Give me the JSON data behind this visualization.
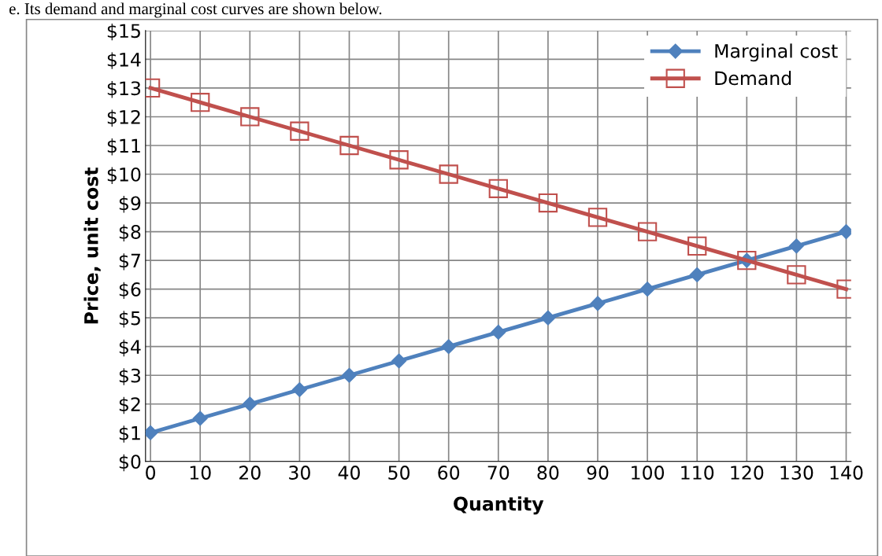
{
  "chart_data": {
    "type": "line",
    "annotations": [
      "e. Its demand and marginal cost curves are shown below."
    ],
    "xlabel": "Quantity",
    "ylabel": "Price, unit cost",
    "categories": [
      "0",
      "10",
      "20",
      "30",
      "40",
      "50",
      "60",
      "70",
      "80",
      "90",
      "100",
      "110",
      "120",
      "130",
      "140"
    ],
    "series": [
      {
        "name": "Marginal cost",
        "color": "#4f81bd",
        "marker": "diamond",
        "values": [
          1,
          1.5,
          2,
          2.5,
          3,
          3.5,
          4,
          4.5,
          5,
          5.5,
          6,
          6.5,
          7,
          7.5,
          8
        ]
      },
      {
        "name": "Demand",
        "color": "#c0504d",
        "marker": "square",
        "values": [
          13,
          12.5,
          12,
          11.5,
          11,
          10.5,
          10,
          9.5,
          9,
          8.5,
          8,
          7.5,
          7,
          6.5,
          6
        ]
      }
    ],
    "ylim": [
      0,
      15
    ],
    "yticks": [
      {
        "value": 0,
        "label": "$0"
      },
      {
        "value": 1,
        "label": "$1"
      },
      {
        "value": 2,
        "label": "$2"
      },
      {
        "value": 3,
        "label": "$3"
      },
      {
        "value": 4,
        "label": "$4"
      },
      {
        "value": 5,
        "label": "$5"
      },
      {
        "value": 6,
        "label": "$6"
      },
      {
        "value": 7,
        "label": "$7"
      },
      {
        "value": 8,
        "label": "$8"
      },
      {
        "value": 9,
        "label": "$9"
      },
      {
        "value": 10,
        "label": "$10"
      },
      {
        "value": 11,
        "label": "$11"
      },
      {
        "value": 12,
        "label": "$12"
      },
      {
        "value": 13,
        "label": "$13"
      },
      {
        "value": 14,
        "label": "$14"
      },
      {
        "value": 15,
        "label": "$15"
      }
    ],
    "grid": true,
    "legend": "top right",
    "line_style": "solid"
  }
}
